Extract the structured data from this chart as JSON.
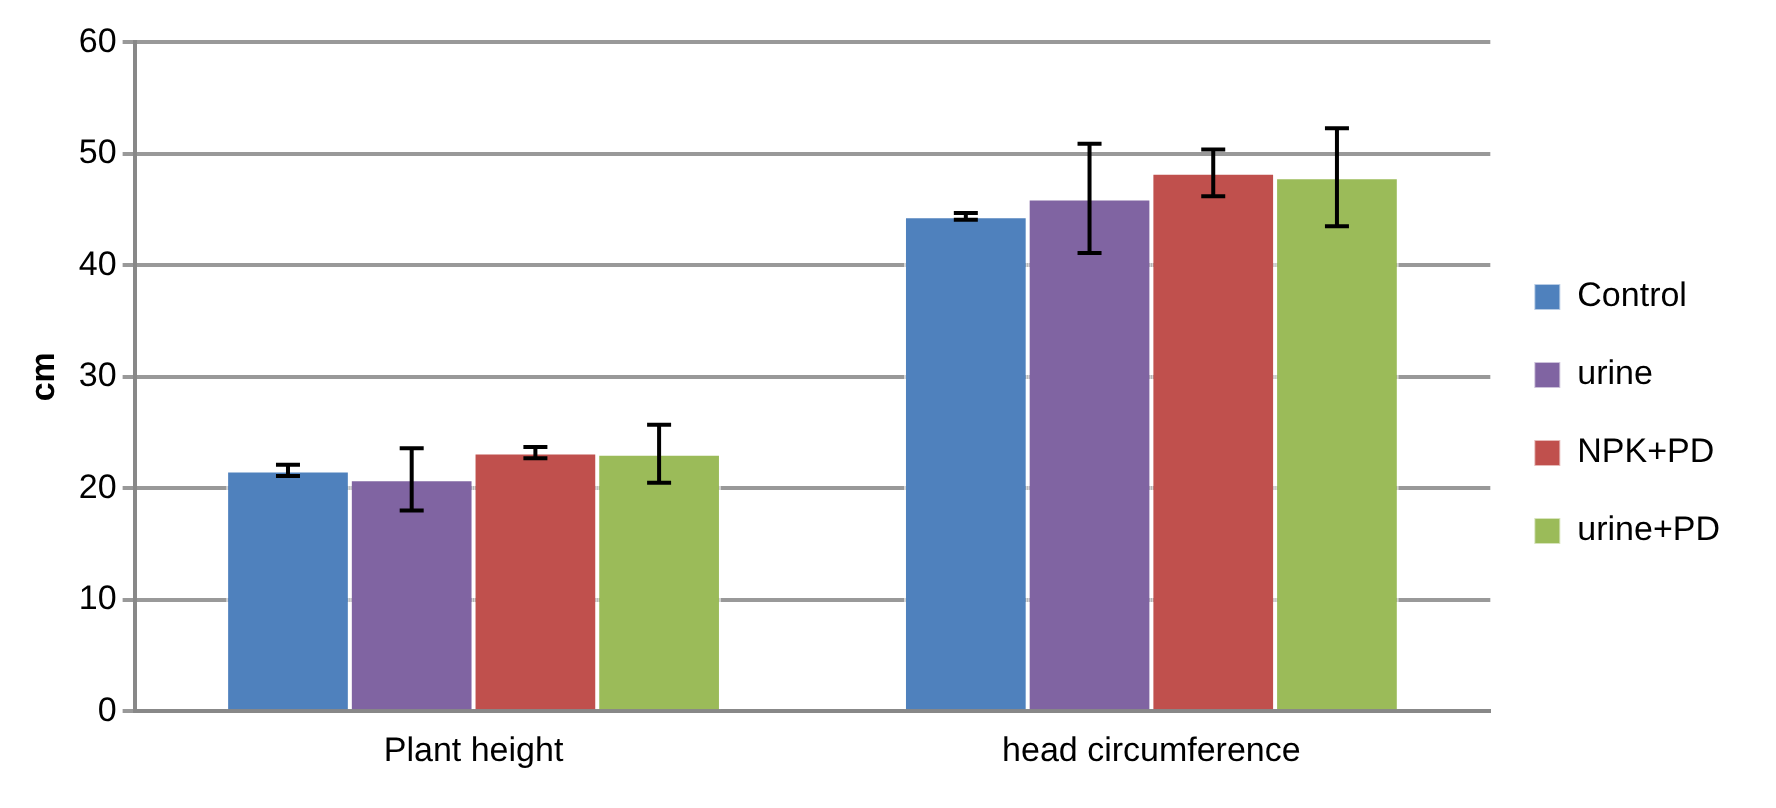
{
  "chart_data": {
    "type": "bar",
    "ylabel": "cm",
    "categories": [
      "Plant height",
      "head circumference"
    ],
    "series": [
      {
        "name": "Control",
        "color": "#4f81bd",
        "values": [
          21.6,
          44.4
        ],
        "errors": [
          0.5,
          0.3
        ]
      },
      {
        "name": "urine",
        "color": "#8064a2",
        "values": [
          20.8,
          46.0
        ],
        "errors": [
          2.8,
          4.9
        ]
      },
      {
        "name": "NPK+PD",
        "color": "#c0504d",
        "values": [
          23.2,
          48.3
        ],
        "errors": [
          0.5,
          2.1
        ]
      },
      {
        "name": "urine+PD",
        "color": "#9bbb59",
        "values": [
          23.1,
          47.9
        ],
        "errors": [
          2.6,
          4.4
        ]
      }
    ],
    "ylim": [
      0,
      60
    ],
    "yticks": [
      0,
      10,
      20,
      30,
      40,
      50,
      60
    ],
    "grid": "y",
    "legend": "right"
  }
}
